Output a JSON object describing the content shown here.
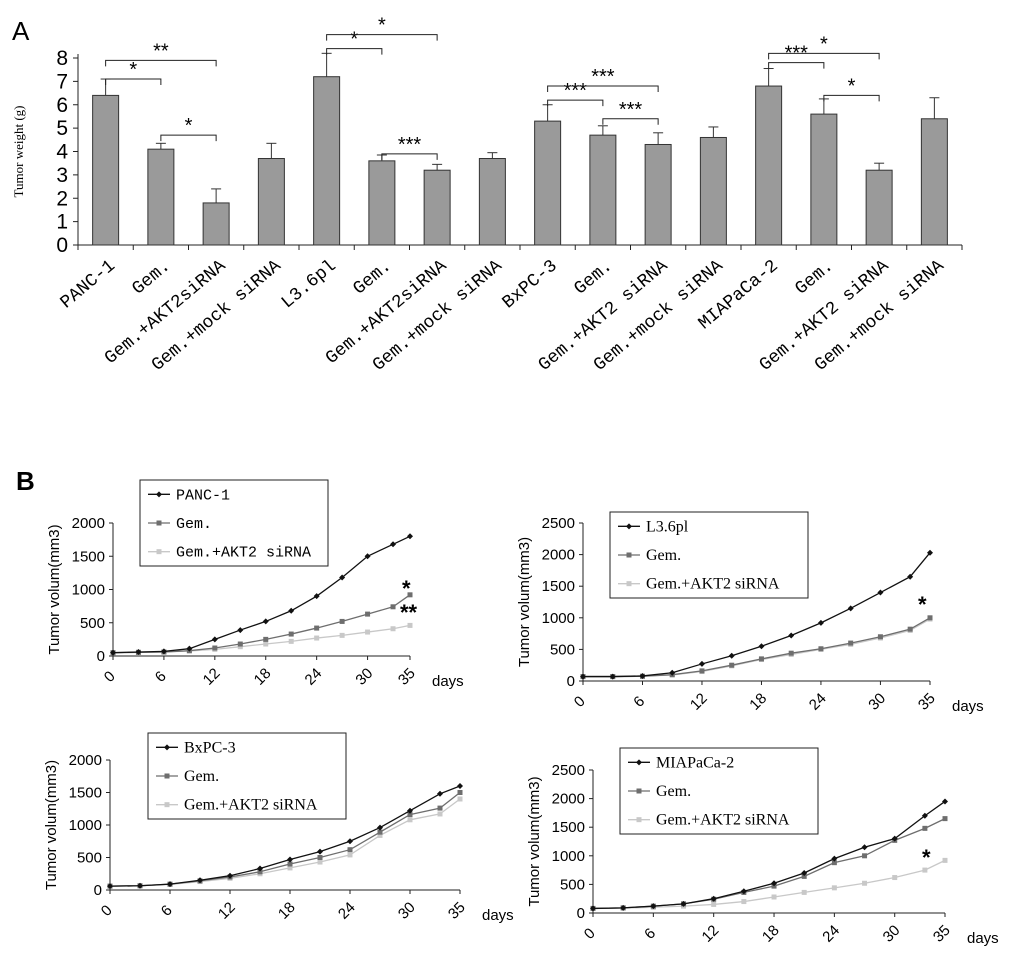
{
  "panel_a_label": "A",
  "panel_b_label": "B",
  "colors": {
    "bar": "#9a9a9a",
    "line_parental": "#111111",
    "line_gem": "#6e6e6e",
    "line_akt2": "#c8c8c8",
    "axis": "#222222"
  },
  "chart_data": [
    {
      "id": "A",
      "type": "bar",
      "title": "",
      "ylabel": "Tumor weight (g)",
      "ylim": [
        0,
        8
      ],
      "yticks": [
        0,
        1,
        2,
        3,
        4,
        5,
        6,
        7,
        8
      ],
      "categories": [
        "PANC-1",
        "Gem.",
        "Gem.+AKT2siRNA",
        "Gem.+mock siRNA",
        "L3.6pl",
        "Gem.",
        "Gem.+AKT2siRNA",
        "Gem.+mock siRNA",
        "BxPC-3",
        "Gem.",
        "Gem.+AKT2 siRNA",
        "Gem.+mock siRNA",
        "MIAPaCa-2",
        "Gem.",
        "Gem.+AKT2 siRNA",
        "Gem.+mock siRNA"
      ],
      "values": [
        6.4,
        4.1,
        1.8,
        3.7,
        7.2,
        3.6,
        3.2,
        3.7,
        5.3,
        4.7,
        4.3,
        4.6,
        6.8,
        5.6,
        3.2,
        5.4
      ],
      "errors": [
        0.7,
        0.25,
        0.6,
        0.65,
        1.0,
        0.25,
        0.25,
        0.25,
        0.7,
        0.4,
        0.5,
        0.45,
        0.75,
        0.65,
        0.3,
        0.9
      ],
      "significance": [
        {
          "from": 0,
          "to": 1,
          "label": "*",
          "y": 7.1
        },
        {
          "from": 0,
          "to": 2,
          "label": "**",
          "y": 7.9
        },
        {
          "from": 1,
          "to": 2,
          "label": "*",
          "y": 4.7
        },
        {
          "from": 4,
          "to": 5,
          "label": "*",
          "y": 8.4
        },
        {
          "from": 4,
          "to": 6,
          "label": "*",
          "y": 9.0
        },
        {
          "from": 5,
          "to": 6,
          "label": "***",
          "y": 3.9
        },
        {
          "from": 8,
          "to": 9,
          "label": "***",
          "y": 6.2
        },
        {
          "from": 8,
          "to": 10,
          "label": "***",
          "y": 6.8
        },
        {
          "from": 9,
          "to": 10,
          "label": "***",
          "y": 5.4
        },
        {
          "from": 12,
          "to": 13,
          "label": "***",
          "y": 7.8
        },
        {
          "from": 12,
          "to": 14,
          "label": "*",
          "y": 8.2
        },
        {
          "from": 13,
          "to": 14,
          "label": "*",
          "y": 6.4
        }
      ]
    },
    {
      "id": "B1",
      "type": "line",
      "ylabel": "Tumor volum(mm3)",
      "xlabel": "days",
      "ylim": [
        0,
        2000
      ],
      "yticks": [
        0,
        500,
        1000,
        1500,
        2000
      ],
      "xlim": [
        0,
        35
      ],
      "xticks": [
        0,
        6,
        12,
        18,
        24,
        30,
        35
      ],
      "x": [
        0,
        3,
        6,
        9,
        12,
        15,
        18,
        21,
        24,
        27,
        30,
        33,
        35
      ],
      "series": [
        {
          "name": "PANC-1",
          "values": [
            50,
            60,
            70,
            110,
            250,
            390,
            520,
            680,
            900,
            1180,
            1500,
            1680,
            1800
          ]
        },
        {
          "name": "Gem.",
          "values": [
            50,
            55,
            60,
            80,
            120,
            180,
            250,
            330,
            420,
            520,
            630,
            740,
            920
          ]
        },
        {
          "name": "Gem.+AKT2 siRNA",
          "values": [
            50,
            55,
            60,
            75,
            100,
            140,
            180,
            220,
            270,
            310,
            360,
            410,
            460
          ]
        }
      ],
      "annotations": [
        "*",
        "**"
      ]
    },
    {
      "id": "B2",
      "type": "line",
      "ylabel": "Tumor volum(mm3)",
      "xlabel": "days",
      "ylim": [
        0,
        2500
      ],
      "yticks": [
        0,
        500,
        1000,
        1500,
        2000,
        2500
      ],
      "xlim": [
        0,
        35
      ],
      "xticks": [
        0,
        6,
        12,
        18,
        24,
        30,
        35
      ],
      "x": [
        0,
        3,
        6,
        9,
        12,
        15,
        18,
        21,
        24,
        27,
        30,
        33,
        35
      ],
      "series": [
        {
          "name": "L3.6pl",
          "values": [
            70,
            70,
            80,
            130,
            270,
            400,
            550,
            720,
            920,
            1150,
            1400,
            1650,
            2030
          ]
        },
        {
          "name": "Gem.",
          "values": [
            70,
            70,
            75,
            100,
            160,
            250,
            350,
            440,
            510,
            600,
            700,
            820,
            1000
          ]
        },
        {
          "name": "Gem.+AKT2 siRNA",
          "values": [
            70,
            70,
            75,
            95,
            150,
            240,
            340,
            420,
            500,
            580,
            680,
            800,
            980
          ]
        }
      ],
      "annotations": [
        "*"
      ]
    },
    {
      "id": "B3",
      "type": "line",
      "ylabel": "Tumor volum(mm3)",
      "xlabel": "days",
      "ylim": [
        0,
        2000
      ],
      "yticks": [
        0,
        500,
        1000,
        1500,
        2000
      ],
      "xlim": [
        0,
        35
      ],
      "xticks": [
        0,
        6,
        12,
        18,
        24,
        30,
        35
      ],
      "x": [
        0,
        3,
        6,
        9,
        12,
        15,
        18,
        21,
        24,
        27,
        30,
        33,
        35
      ],
      "series": [
        {
          "name": "BxPC-3",
          "values": [
            60,
            65,
            90,
            150,
            220,
            330,
            470,
            590,
            750,
            960,
            1220,
            1480,
            1600
          ]
        },
        {
          "name": "Gem.",
          "values": [
            60,
            65,
            90,
            140,
            200,
            280,
            400,
            500,
            620,
            890,
            1160,
            1260,
            1500
          ]
        },
        {
          "name": "Gem.+AKT2 siRNA",
          "values": [
            60,
            65,
            85,
            130,
            180,
            250,
            340,
            430,
            540,
            840,
            1080,
            1170,
            1400
          ]
        }
      ],
      "annotations": []
    },
    {
      "id": "B4",
      "type": "line",
      "ylabel": "Tumor volum(mm3)",
      "xlabel": "days",
      "ylim": [
        0,
        2500
      ],
      "yticks": [
        0,
        500,
        1000,
        1500,
        2000,
        2500
      ],
      "xlim": [
        0,
        35
      ],
      "xticks": [
        0,
        6,
        12,
        18,
        24,
        30,
        35
      ],
      "x": [
        0,
        3,
        6,
        9,
        12,
        15,
        18,
        21,
        24,
        27,
        30,
        33,
        35
      ],
      "series": [
        {
          "name": "MIAPaCa-2",
          "values": [
            80,
            90,
            120,
            160,
            250,
            380,
            520,
            700,
            950,
            1150,
            1300,
            1700,
            1950
          ]
        },
        {
          "name": "Gem.",
          "values": [
            80,
            90,
            120,
            160,
            240,
            360,
            470,
            640,
            880,
            1000,
            1270,
            1480,
            1650
          ]
        },
        {
          "name": "Gem.+AKT2 siRNA",
          "values": [
            80,
            85,
            100,
            120,
            150,
            200,
            280,
            360,
            440,
            520,
            620,
            750,
            920
          ]
        }
      ],
      "annotations": [
        "*"
      ]
    }
  ]
}
